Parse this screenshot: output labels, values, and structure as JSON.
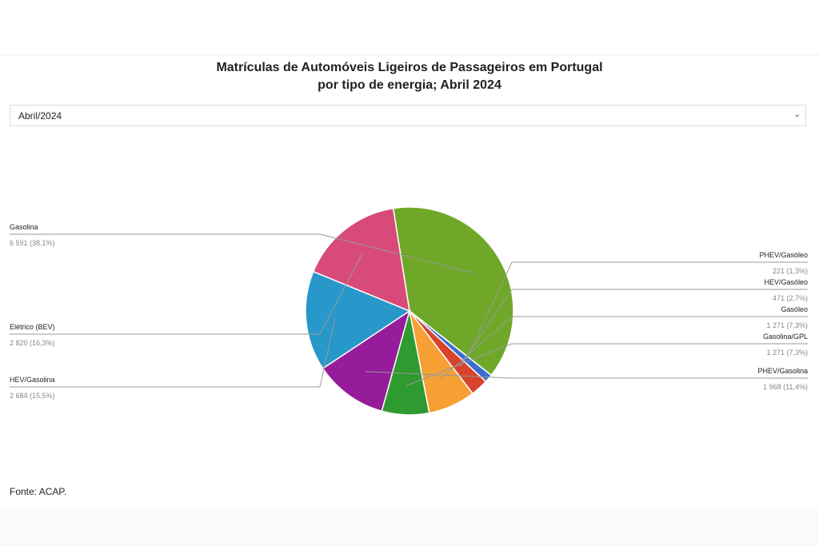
{
  "title_line1": "Matrículas de Automóveis Ligeiros de Passageiros em Portugal",
  "title_line2": "por tipo de energia; Abril 2024",
  "selector": {
    "value": "Abril/2024",
    "icon": "chevron-down-icon"
  },
  "source": "Fonte: ACAP.",
  "chart_data": {
    "type": "pie",
    "title": "Matrículas de Automóveis Ligeiros de Passageiros em Portugal por tipo de energia; Abril 2024",
    "slices": [
      {
        "label": "Gasolina",
        "value": 6591,
        "display": "6 591 (38,1%)",
        "color": "#6fa828"
      },
      {
        "label": "PHEV/Gasóleo",
        "value": 221,
        "display": "221 (1,3%)",
        "color": "#3a6fd0"
      },
      {
        "label": "HEV/Gasóleo",
        "value": 471,
        "display": "471 (2,7%)",
        "color": "#d9432c"
      },
      {
        "label": "Gasóleo",
        "value": 1271,
        "display": "1 271 (7,3%)",
        "color": "#f6a035"
      },
      {
        "label": "Gasolina/GPL",
        "value": 1271,
        "display": "1 271 (7,3%)",
        "color": "#2f9a2f"
      },
      {
        "label": "PHEV/Gasolina",
        "value": 1968,
        "display": "1 968 (11,4%)",
        "color": "#961c9b"
      },
      {
        "label": "HEV/Gasolina",
        "value": 2684,
        "display": "2 684 (15,5%)",
        "color": "#2897c9"
      },
      {
        "label": "Elétrico (BEV)",
        "value": 2820,
        "display": "2 820 (16,3%)",
        "color": "#d84a79"
      }
    ]
  }
}
